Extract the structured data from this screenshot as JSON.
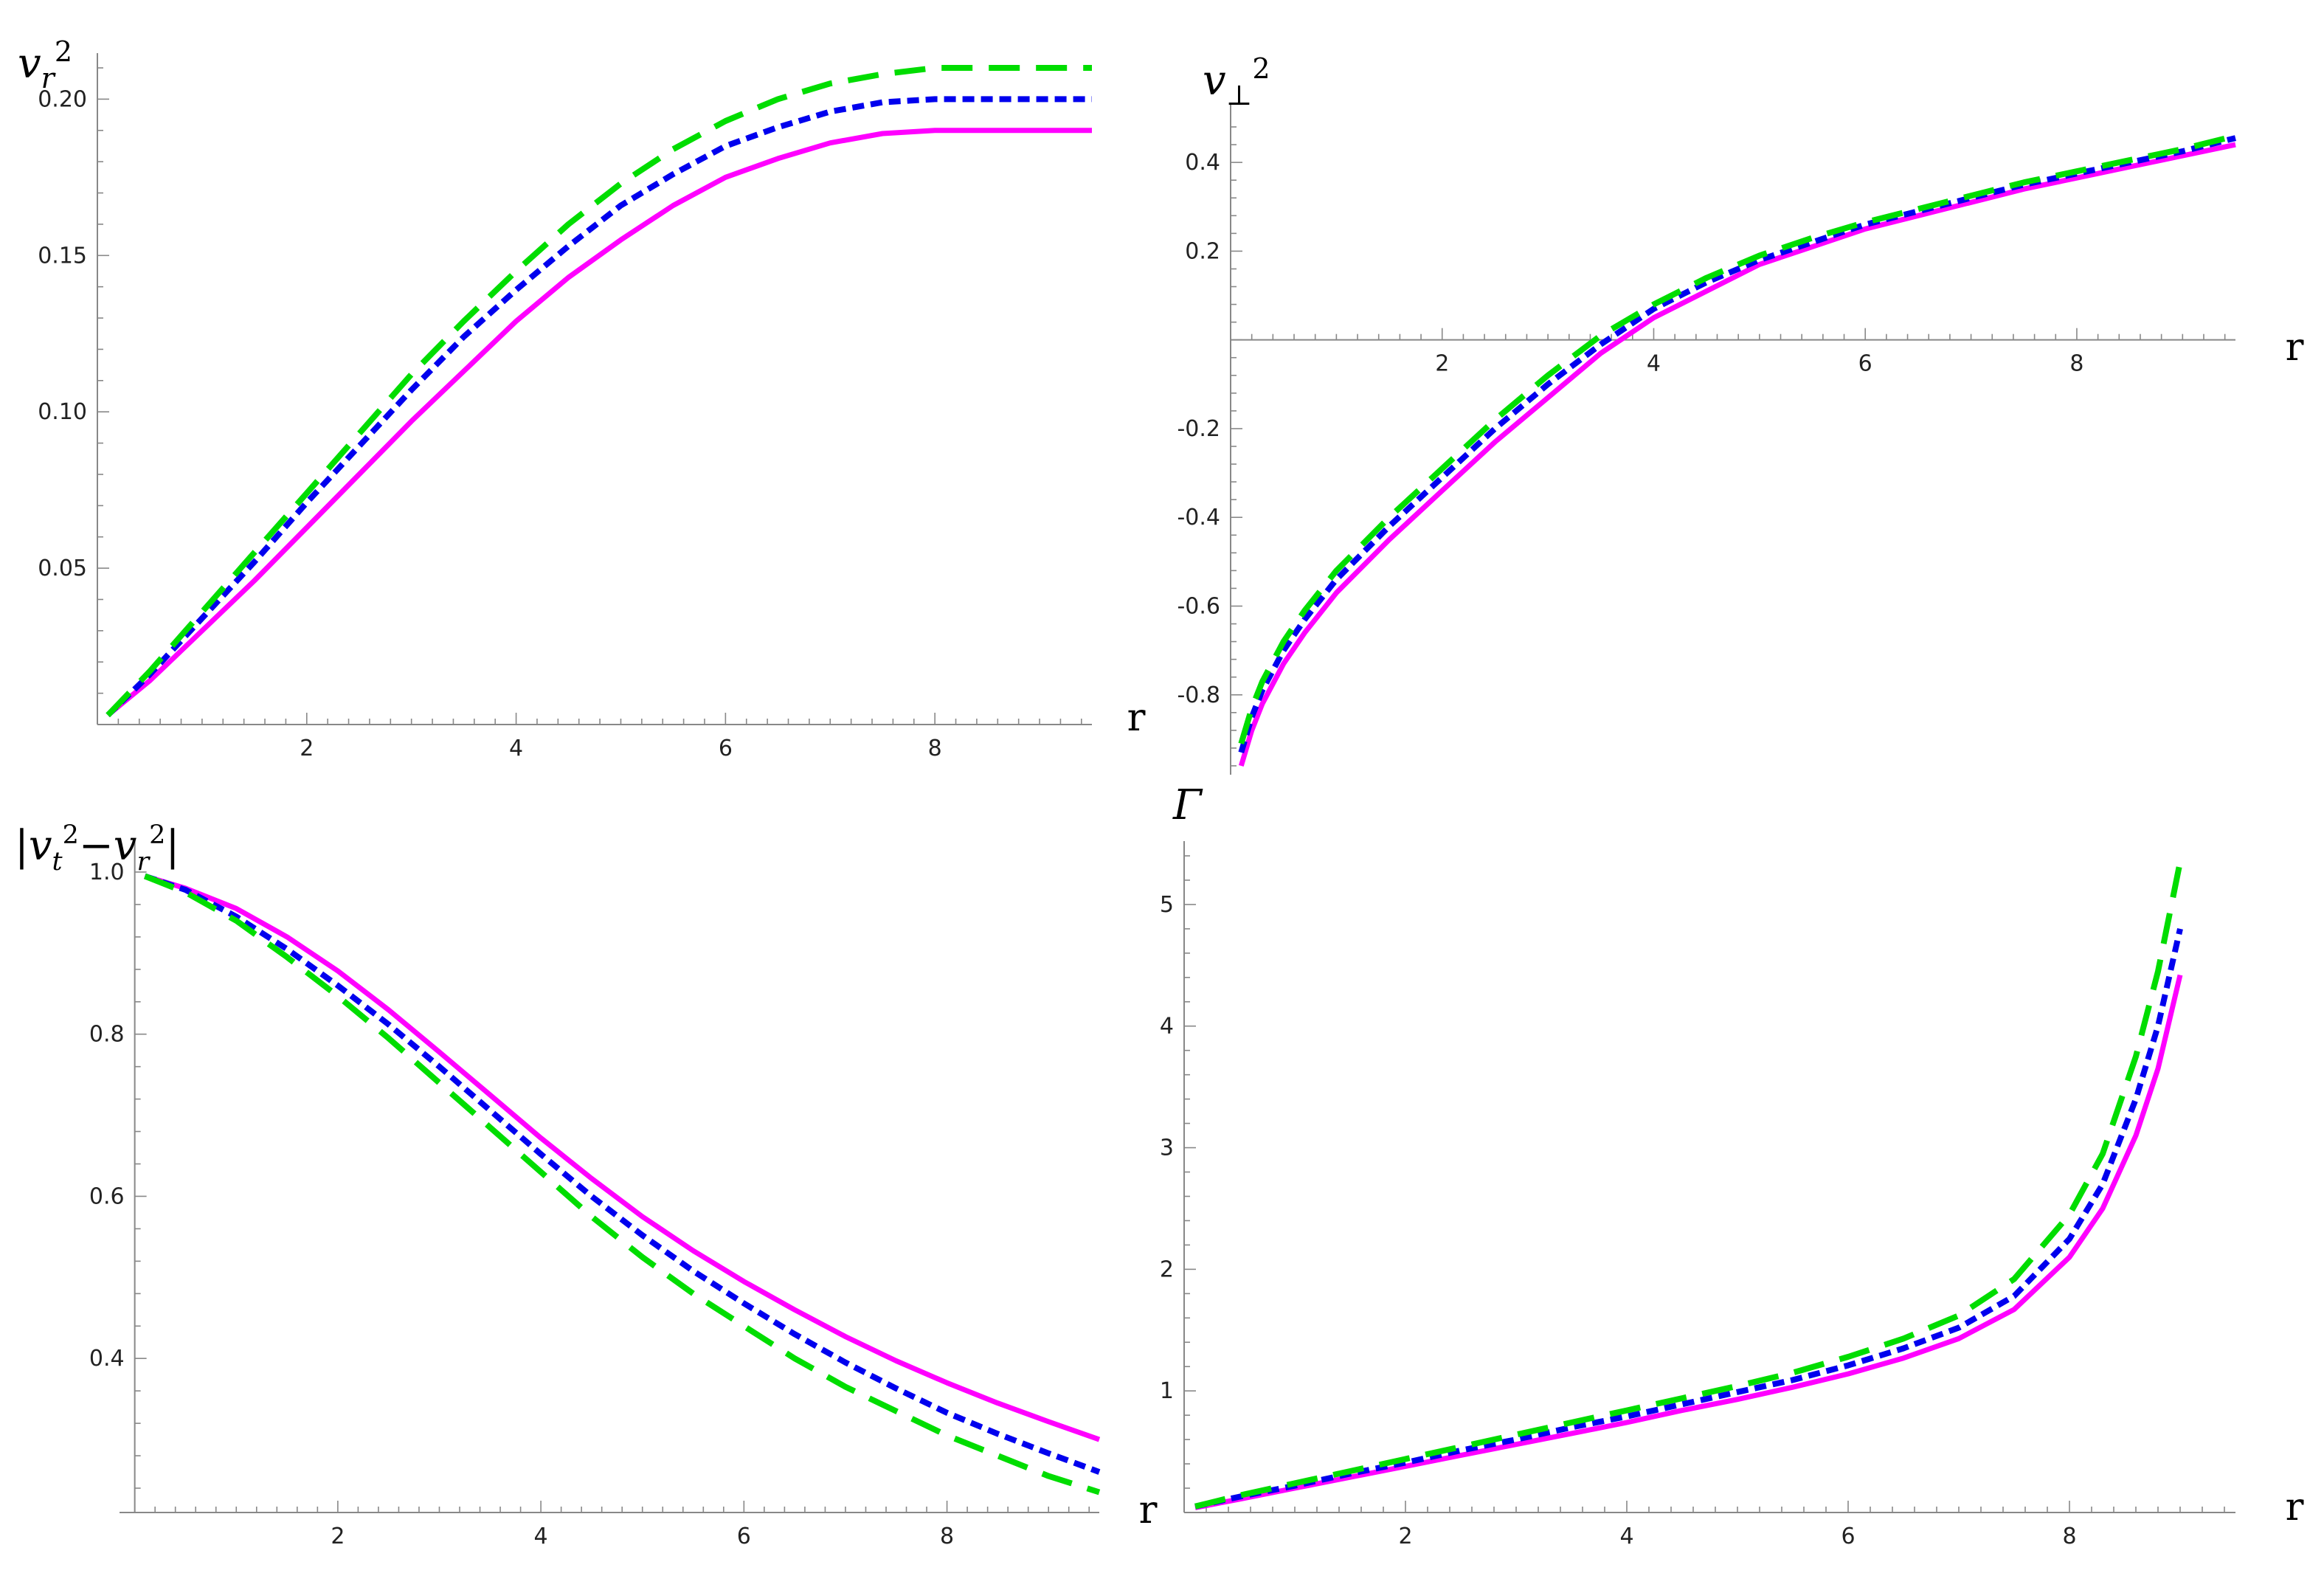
{
  "chart_data": [
    {
      "type": "line",
      "title": "",
      "ylabel": "v_r^2",
      "xlabel": "r",
      "xlim": [
        0,
        9.5
      ],
      "ylim": [
        0,
        0.21
      ],
      "xticks": [
        "2",
        "4",
        "6",
        "8"
      ],
      "yticks": [
        "0.05",
        "0.10",
        "0.15",
        "0.20"
      ],
      "grid": false,
      "x": [
        0.1,
        0.5,
        1,
        1.5,
        2,
        2.5,
        3,
        3.5,
        4,
        4.5,
        5,
        5.5,
        6,
        6.5,
        7,
        7.5,
        8,
        8.5,
        9,
        9.5
      ],
      "series": [
        {
          "color": "#00dd00",
          "dash": "long-dash",
          "values": [
            0.003,
            0.017,
            0.036,
            0.055,
            0.074,
            0.093,
            0.112,
            0.129,
            0.145,
            0.16,
            0.173,
            0.184,
            0.193,
            0.2,
            0.205,
            0.208,
            0.21,
            0.21,
            0.21,
            0.21
          ]
        },
        {
          "color": "#0000ee",
          "dash": "short-dash",
          "values": [
            0.003,
            0.016,
            0.034,
            0.052,
            0.071,
            0.089,
            0.107,
            0.124,
            0.139,
            0.153,
            0.166,
            0.176,
            0.185,
            0.191,
            0.196,
            0.199,
            0.2,
            0.2,
            0.2,
            0.2
          ]
        },
        {
          "color": "#ff00ff",
          "dash": "solid",
          "values": [
            0.003,
            0.014,
            0.03,
            0.046,
            0.063,
            0.08,
            0.097,
            0.113,
            0.129,
            0.143,
            0.155,
            0.166,
            0.175,
            0.181,
            0.186,
            0.189,
            0.19,
            0.19,
            0.19,
            0.19
          ]
        }
      ]
    },
    {
      "type": "line",
      "title": "",
      "ylabel": "v_⊥^2",
      "xlabel": "r",
      "xlim": [
        0,
        9.5
      ],
      "ylim": [
        -0.98,
        0.5
      ],
      "xticks": [
        "2",
        "4",
        "6",
        "8"
      ],
      "yticks": [
        "-0.8",
        "-0.6",
        "-0.4",
        "-0.2",
        "0.2",
        "0.4"
      ],
      "grid": false,
      "x": [
        0.1,
        0.2,
        0.3,
        0.5,
        0.7,
        1,
        1.5,
        2,
        2.5,
        3,
        3.5,
        4,
        4.5,
        5,
        5.5,
        6,
        6.5,
        7,
        7.5,
        8,
        8.5,
        9,
        9.5
      ],
      "series": [
        {
          "color": "#00dd00",
          "dash": "long-dash",
          "values": [
            -0.91,
            -0.83,
            -0.77,
            -0.68,
            -0.61,
            -0.52,
            -0.4,
            -0.29,
            -0.18,
            -0.08,
            0.01,
            0.08,
            0.14,
            0.19,
            0.23,
            0.265,
            0.295,
            0.325,
            0.355,
            0.38,
            0.405,
            0.43,
            0.46
          ]
        },
        {
          "color": "#0000ee",
          "dash": "short-dash",
          "values": [
            -0.93,
            -0.85,
            -0.79,
            -0.7,
            -0.63,
            -0.54,
            -0.42,
            -0.31,
            -0.2,
            -0.1,
            -0.01,
            0.07,
            0.13,
            0.18,
            0.22,
            0.26,
            0.29,
            0.32,
            0.35,
            0.375,
            0.4,
            0.425,
            0.455
          ]
        },
        {
          "color": "#ff00ff",
          "dash": "solid",
          "values": [
            -0.96,
            -0.88,
            -0.82,
            -0.73,
            -0.66,
            -0.57,
            -0.45,
            -0.34,
            -0.23,
            -0.13,
            -0.03,
            0.05,
            0.11,
            0.17,
            0.21,
            0.25,
            0.28,
            0.31,
            0.34,
            0.365,
            0.39,
            0.415,
            0.44
          ]
        }
      ]
    },
    {
      "type": "line",
      "title": "",
      "ylabel": "|v_t^2−v_r^2|",
      "xlabel": "",
      "xlim": [
        -0.15,
        9.5
      ],
      "ylim": [
        0.21,
        1.02
      ],
      "xticks": [
        "2",
        "4",
        "6",
        "8"
      ],
      "yticks": [
        "0.4",
        "0.6",
        "0.8",
        "1.0"
      ],
      "grid": false,
      "x": [
        0.1,
        0.5,
        1,
        1.5,
        2,
        2.5,
        3,
        3.5,
        4,
        4.5,
        5,
        5.5,
        6,
        6.5,
        7,
        7.5,
        8,
        8.5,
        9,
        9.5
      ],
      "series": [
        {
          "color": "#00dd00",
          "dash": "long-dash",
          "values": [
            0.995,
            0.975,
            0.94,
            0.895,
            0.847,
            0.795,
            0.74,
            0.685,
            0.63,
            0.575,
            0.525,
            0.48,
            0.44,
            0.4,
            0.365,
            0.335,
            0.305,
            0.28,
            0.255,
            0.235
          ]
        },
        {
          "color": "#0000ee",
          "dash": "short-dash",
          "values": [
            0.995,
            0.978,
            0.945,
            0.905,
            0.86,
            0.812,
            0.76,
            0.706,
            0.652,
            0.6,
            0.552,
            0.508,
            0.468,
            0.43,
            0.395,
            0.363,
            0.333,
            0.307,
            0.283,
            0.26
          ]
        },
        {
          "color": "#ff00ff",
          "dash": "solid",
          "values": [
            0.995,
            0.98,
            0.955,
            0.92,
            0.878,
            0.83,
            0.778,
            0.725,
            0.672,
            0.622,
            0.575,
            0.533,
            0.495,
            0.46,
            0.427,
            0.397,
            0.37,
            0.345,
            0.322,
            0.3
          ]
        }
      ]
    },
    {
      "type": "line",
      "title": "",
      "ylabel": "Γ",
      "xlabel": "r",
      "xlim": [
        0,
        9.5
      ],
      "ylim": [
        0,
        5.4
      ],
      "xticks": [
        "2",
        "4",
        "6",
        "8"
      ],
      "yticks": [
        "1",
        "2",
        "3",
        "4",
        "5"
      ],
      "grid": false,
      "x": [
        0.1,
        0.5,
        1,
        1.5,
        2,
        2.5,
        3,
        3.5,
        4,
        4.5,
        5,
        5.5,
        6,
        6.5,
        7,
        7.5,
        8,
        8.3,
        8.6,
        8.8,
        9.0
      ],
      "series": [
        {
          "color": "#00dd00",
          "dash": "long-dash",
          "values": [
            0.05,
            0.14,
            0.24,
            0.34,
            0.44,
            0.54,
            0.64,
            0.74,
            0.84,
            0.94,
            1.04,
            1.15,
            1.28,
            1.43,
            1.62,
            1.92,
            2.45,
            2.95,
            3.75,
            4.45,
            5.35
          ]
        },
        {
          "color": "#0000ee",
          "dash": "short-dash",
          "values": [
            0.05,
            0.13,
            0.22,
            0.32,
            0.41,
            0.51,
            0.6,
            0.7,
            0.79,
            0.89,
            0.99,
            1.09,
            1.21,
            1.35,
            1.52,
            1.78,
            2.25,
            2.7,
            3.4,
            4.0,
            4.8
          ]
        },
        {
          "color": "#ff00ff",
          "dash": "solid",
          "values": [
            0.04,
            0.11,
            0.2,
            0.29,
            0.38,
            0.47,
            0.56,
            0.65,
            0.74,
            0.84,
            0.93,
            1.03,
            1.14,
            1.27,
            1.43,
            1.67,
            2.1,
            2.5,
            3.1,
            3.65,
            4.42
          ]
        }
      ]
    }
  ]
}
